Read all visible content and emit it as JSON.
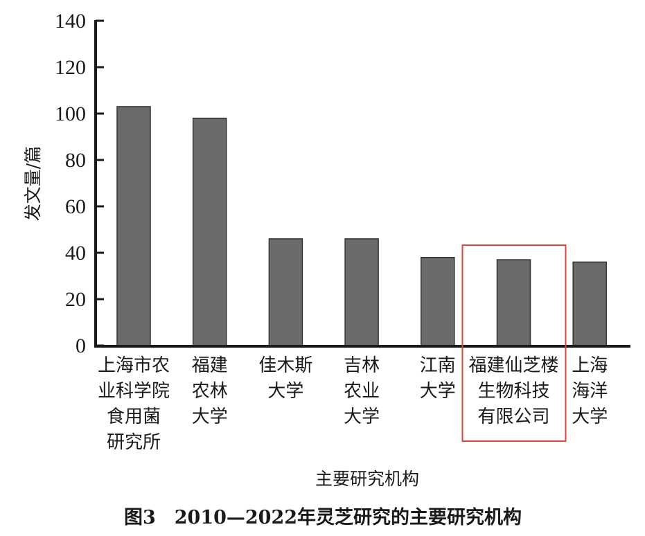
{
  "chart_data": {
    "type": "bar",
    "title": "图3　2010—2022年灵芝研究的主要研究机构",
    "xlabel": "主要研究机构",
    "ylabel": "发文量/篇",
    "ylim": [
      0,
      140
    ],
    "yticks": [
      0,
      20,
      40,
      60,
      80,
      100,
      120,
      140
    ],
    "categories": [
      [
        "上海市农",
        "业科学院",
        "食用菌",
        "研究所"
      ],
      [
        "福建",
        "农林",
        "大学"
      ],
      [
        "佳木斯",
        "大学"
      ],
      [
        "吉林",
        "农业",
        "大学"
      ],
      [
        "江南",
        "大学"
      ],
      [
        "福建仙芝楼",
        "生物科技",
        "有限公司"
      ],
      [
        "上海",
        "海洋",
        "大学"
      ]
    ],
    "values": [
      103,
      98,
      46,
      46,
      38,
      37,
      36
    ],
    "highlighted_index": 5,
    "bar_color": "#6b6b6b",
    "highlight_color": "#d9483b",
    "grid": false
  }
}
